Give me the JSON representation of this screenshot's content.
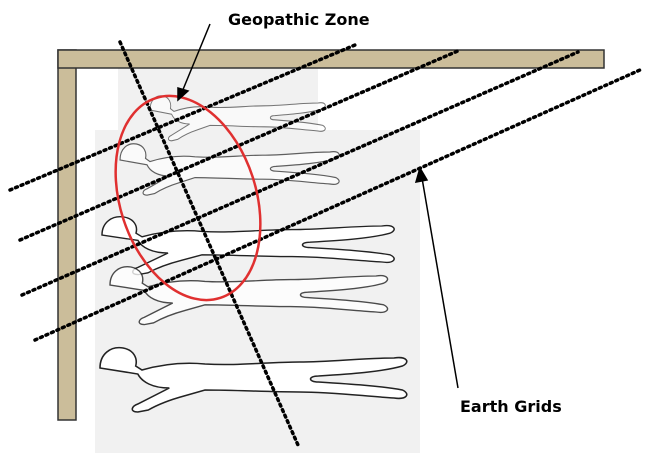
{
  "labels": {
    "geopathic_zone": "Geopathic Zone",
    "earth_grids": "Earth Grids"
  }
}
